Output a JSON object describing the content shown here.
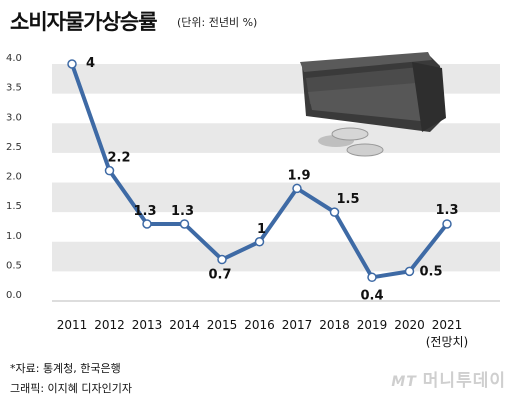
{
  "header": {
    "title": "소비자물가상승률",
    "unit": "(단위: 전년비 %)"
  },
  "chart_data": {
    "type": "line",
    "title": "소비자물가상승률",
    "x": [
      "2011",
      "2012",
      "2013",
      "2014",
      "2015",
      "2016",
      "2017",
      "2018",
      "2019",
      "2020",
      "2021"
    ],
    "x_sublabels": [
      "",
      "",
      "",
      "",
      "",
      "",
      "",
      "",
      "",
      "",
      "(전망치)"
    ],
    "series": [
      {
        "values": [
          4,
          2.2,
          1.3,
          1.3,
          0.7,
          1,
          1.9,
          1.5,
          0.4,
          0.5,
          1.3
        ],
        "labels": [
          "4",
          "2.2",
          "1.3",
          "1.3",
          "0.7",
          "1",
          "1.9",
          "1.5",
          "0.4",
          "0.5",
          "1.3"
        ]
      }
    ],
    "yticks": [
      "0.0",
      "0.5",
      "1.0",
      "1.5",
      "2.0",
      "2.5",
      "3.0",
      "3.5",
      "4.0"
    ],
    "ylim": [
      0,
      4
    ],
    "grid": true,
    "colors": {
      "line": "#3e6aa5",
      "band": "#e8e8e8"
    }
  },
  "footer": {
    "source": "*자료: 통계청, 한국은행",
    "credit": "그래픽: 이지혜 디자인기자"
  },
  "brand": {
    "logo_mark": "MT",
    "logo_text": "머니투데이"
  }
}
